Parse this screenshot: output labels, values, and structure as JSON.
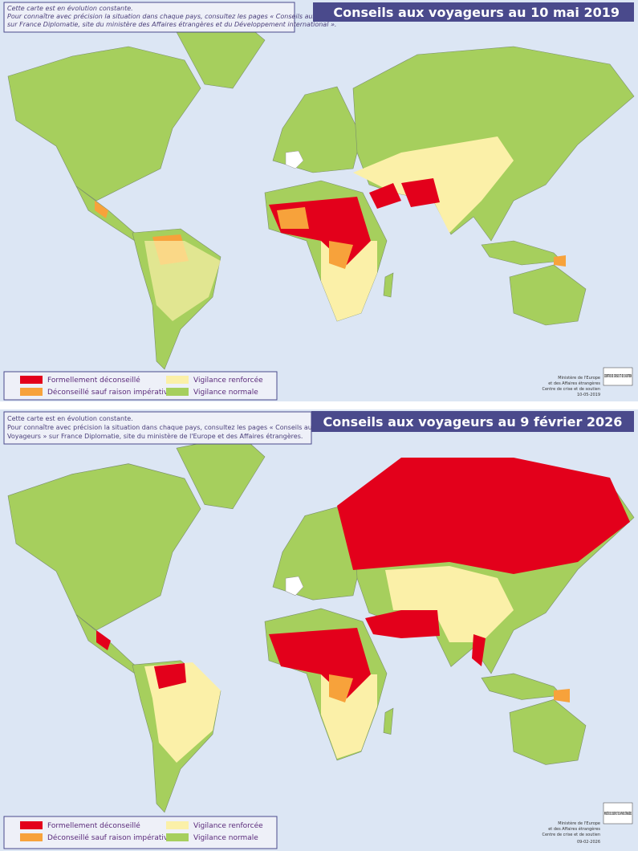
{
  "maps": [
    {
      "note": [
        "Cette carte est en évolution constante.",
        "Pour connaître avec précision la situation dans chaque pays, consultez les pages « Conseils aux Voyageurs »",
        "sur France Diplomatie, site du ministère des Affaires étrangères et du Développement international »."
      ],
      "title": "Conseils aux voyageurs au 10 mai 2019",
      "legend": [
        {
          "label": "Formellement déconseillé",
          "color": "#e3001b"
        },
        {
          "label": "Déconseillé sauf raison impérative",
          "color": "#f7a23b"
        },
        {
          "label": "Vigilance renforcée",
          "color": "#fbf0a8"
        },
        {
          "label": "Vigilance normale",
          "color": "#a6cf5d"
        }
      ],
      "logo": "CENTRE DE CRISE ET DE SOUTIEN",
      "credit": [
        "Ministère de l'Europe",
        "et des Affaires étrangères",
        "Centre de crise et de soutien",
        "10-05-2019"
      ]
    },
    {
      "note": [
        "Cette carte est en évolution constante.",
        "Pour connaître avec précision la situation dans chaque pays, consultez les pages « Conseils aux",
        "Voyageurs » sur France Diplomatie, site du ministère de l'Europe et des Affaires étrangères."
      ],
      "title": "Conseils aux voyageurs au 9 février 2026",
      "legend": [
        {
          "label": "Formellement déconseillé",
          "color": "#e3001b"
        },
        {
          "label": "Déconseillé sauf raison impérative",
          "color": "#f7a23b"
        },
        {
          "label": "Vigilance renforcée",
          "color": "#fbf0a8"
        },
        {
          "label": "Vigilance normale",
          "color": "#a6cf5d"
        }
      ],
      "logo": "MINISTÈRE DE L'EUROPE ET DES AFFAIRES ÉTRANGÈRES",
      "credit": [
        "Ministère de l'Europe",
        "et des Affaires étrangères",
        "Centre de crise et de soutien",
        "09-02-2026"
      ]
    }
  ]
}
